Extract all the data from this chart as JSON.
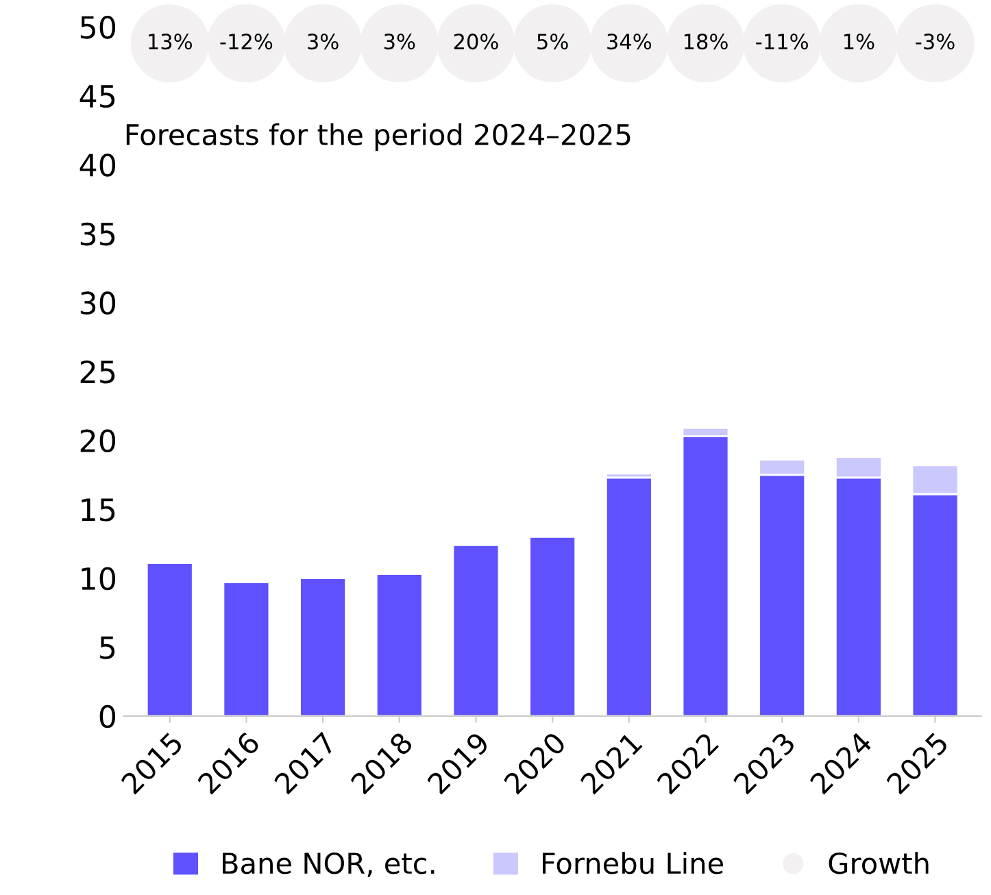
{
  "chart_data": {
    "type": "bar",
    "stacked": true,
    "categories": [
      "2015",
      "2016",
      "2017",
      "2018",
      "2019",
      "2020",
      "2021",
      "2022",
      "2023",
      "2024",
      "2025"
    ],
    "series": [
      {
        "name": "Bane NOR, etc.",
        "color": "#5f52fe",
        "values": [
          11.1,
          9.7,
          10.0,
          10.3,
          12.4,
          13.0,
          17.3,
          20.3,
          17.5,
          17.3,
          16.1
        ]
      },
      {
        "name": "Fornebu Line",
        "color": "#cbc8fe",
        "values": [
          null,
          null,
          null,
          null,
          null,
          null,
          0.3,
          0.6,
          1.1,
          1.5,
          2.1
        ]
      },
      {
        "name": "Growth",
        "type": "scatter",
        "color": "#f2f0f0",
        "values": [
          48.8,
          48.8,
          48.8,
          48.8,
          48.8,
          48.8,
          48.8,
          48.8,
          48.8,
          48.8,
          48.8
        ]
      }
    ],
    "annotations": [
      "Forecasts for the period 2024–2025",
      {
        "text": "13%",
        "x": "2015",
        "y": 48.8
      },
      {
        "text": "-12%",
        "x": "2016",
        "y": 48.8
      },
      {
        "text": "3%",
        "x": "2017",
        "y": 48.8
      },
      {
        "text": "3%",
        "x": "2018",
        "y": 48.8
      },
      {
        "text": "20%",
        "x": "2019",
        "y": 48.8
      },
      {
        "text": "5%",
        "x": "2020",
        "y": 48.8
      },
      {
        "text": "34%",
        "x": "2021",
        "y": 48.8
      },
      {
        "text": "18%",
        "x": "2022",
        "y": 48.8
      },
      {
        "text": "-11%",
        "x": "2023",
        "y": 48.8
      },
      {
        "text": "1%",
        "x": "2024",
        "y": 48.8
      },
      {
        "text": "-3%",
        "x": "2025",
        "y": 48.8
      }
    ],
    "ylim": [
      0,
      50
    ],
    "yticks": [
      0,
      5,
      10,
      15,
      20,
      25,
      30,
      35,
      40,
      45,
      50
    ],
    "grid": false,
    "legend": "bottom",
    "marker": "circle"
  }
}
